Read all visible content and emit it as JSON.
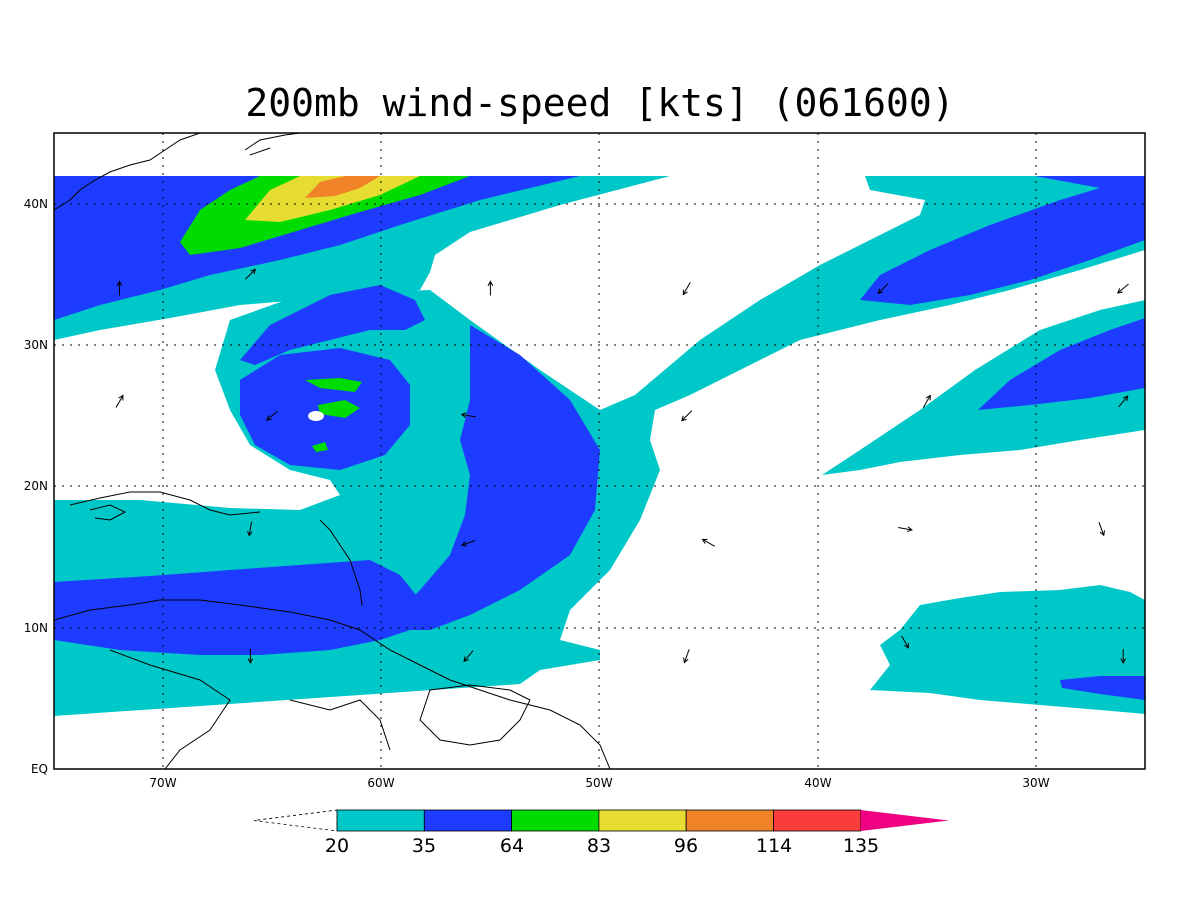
{
  "title": "200mb wind-speed [kts] (061600)",
  "map": {
    "lon_range": [
      -75,
      -25
    ],
    "lat_range": [
      0,
      45
    ],
    "lon_ticks": [
      {
        "value": -70,
        "label": "70W"
      },
      {
        "value": -60,
        "label": "60W"
      },
      {
        "value": -50,
        "label": "50W"
      },
      {
        "value": -40,
        "label": "40W"
      },
      {
        "value": -30,
        "label": "30W"
      }
    ],
    "lat_ticks": [
      {
        "value": 0,
        "label": "EQ"
      },
      {
        "value": 10,
        "label": "10N"
      },
      {
        "value": 20,
        "label": "20N"
      },
      {
        "value": 30,
        "label": "30N"
      },
      {
        "value": 40,
        "label": "40N"
      }
    ],
    "grid": "dotted",
    "data_top_lat": 42
  },
  "colorbar": {
    "levels": [
      "20",
      "35",
      "64",
      "83",
      "96",
      "114",
      "135"
    ],
    "colors": [
      "#00c8c8",
      "#1e3cff",
      "#00dc00",
      "#e6dc32",
      "#f08228",
      "#fa3c3c",
      "#f00082"
    ],
    "below_color": "#ffffff",
    "above_color": "#f00082"
  },
  "wind_vectors": [
    {
      "lon": -72,
      "lat": 34,
      "dir_deg": 90
    },
    {
      "lon": -66,
      "lat": 35,
      "dir_deg": 45
    },
    {
      "lon": -55,
      "lat": 34,
      "dir_deg": 90
    },
    {
      "lon": -46,
      "lat": 34,
      "dir_deg": 240
    },
    {
      "lon": -37,
      "lat": 34,
      "dir_deg": 225
    },
    {
      "lon": -26,
      "lat": 34,
      "dir_deg": 220
    },
    {
      "lon": -65,
      "lat": 25,
      "dir_deg": 220
    },
    {
      "lon": -56,
      "lat": 25,
      "dir_deg": 170
    },
    {
      "lon": -46,
      "lat": 25,
      "dir_deg": 225
    },
    {
      "lon": -35,
      "lat": 26,
      "dir_deg": 60
    },
    {
      "lon": -26,
      "lat": 26,
      "dir_deg": 50
    },
    {
      "lon": -72,
      "lat": 26,
      "dir_deg": 60
    },
    {
      "lon": -66,
      "lat": 17,
      "dir_deg": 260
    },
    {
      "lon": -56,
      "lat": 16,
      "dir_deg": 200
    },
    {
      "lon": -45,
      "lat": 16,
      "dir_deg": 150
    },
    {
      "lon": -36,
      "lat": 17,
      "dir_deg": 350
    },
    {
      "lon": -27,
      "lat": 17,
      "dir_deg": 290
    },
    {
      "lon": -66,
      "lat": 8,
      "dir_deg": 270
    },
    {
      "lon": -56,
      "lat": 8,
      "dir_deg": 230
    },
    {
      "lon": -46,
      "lat": 8,
      "dir_deg": 250
    },
    {
      "lon": -36,
      "lat": 9,
      "dir_deg": 300
    },
    {
      "lon": -26,
      "lat": 8,
      "dir_deg": 270
    }
  ]
}
